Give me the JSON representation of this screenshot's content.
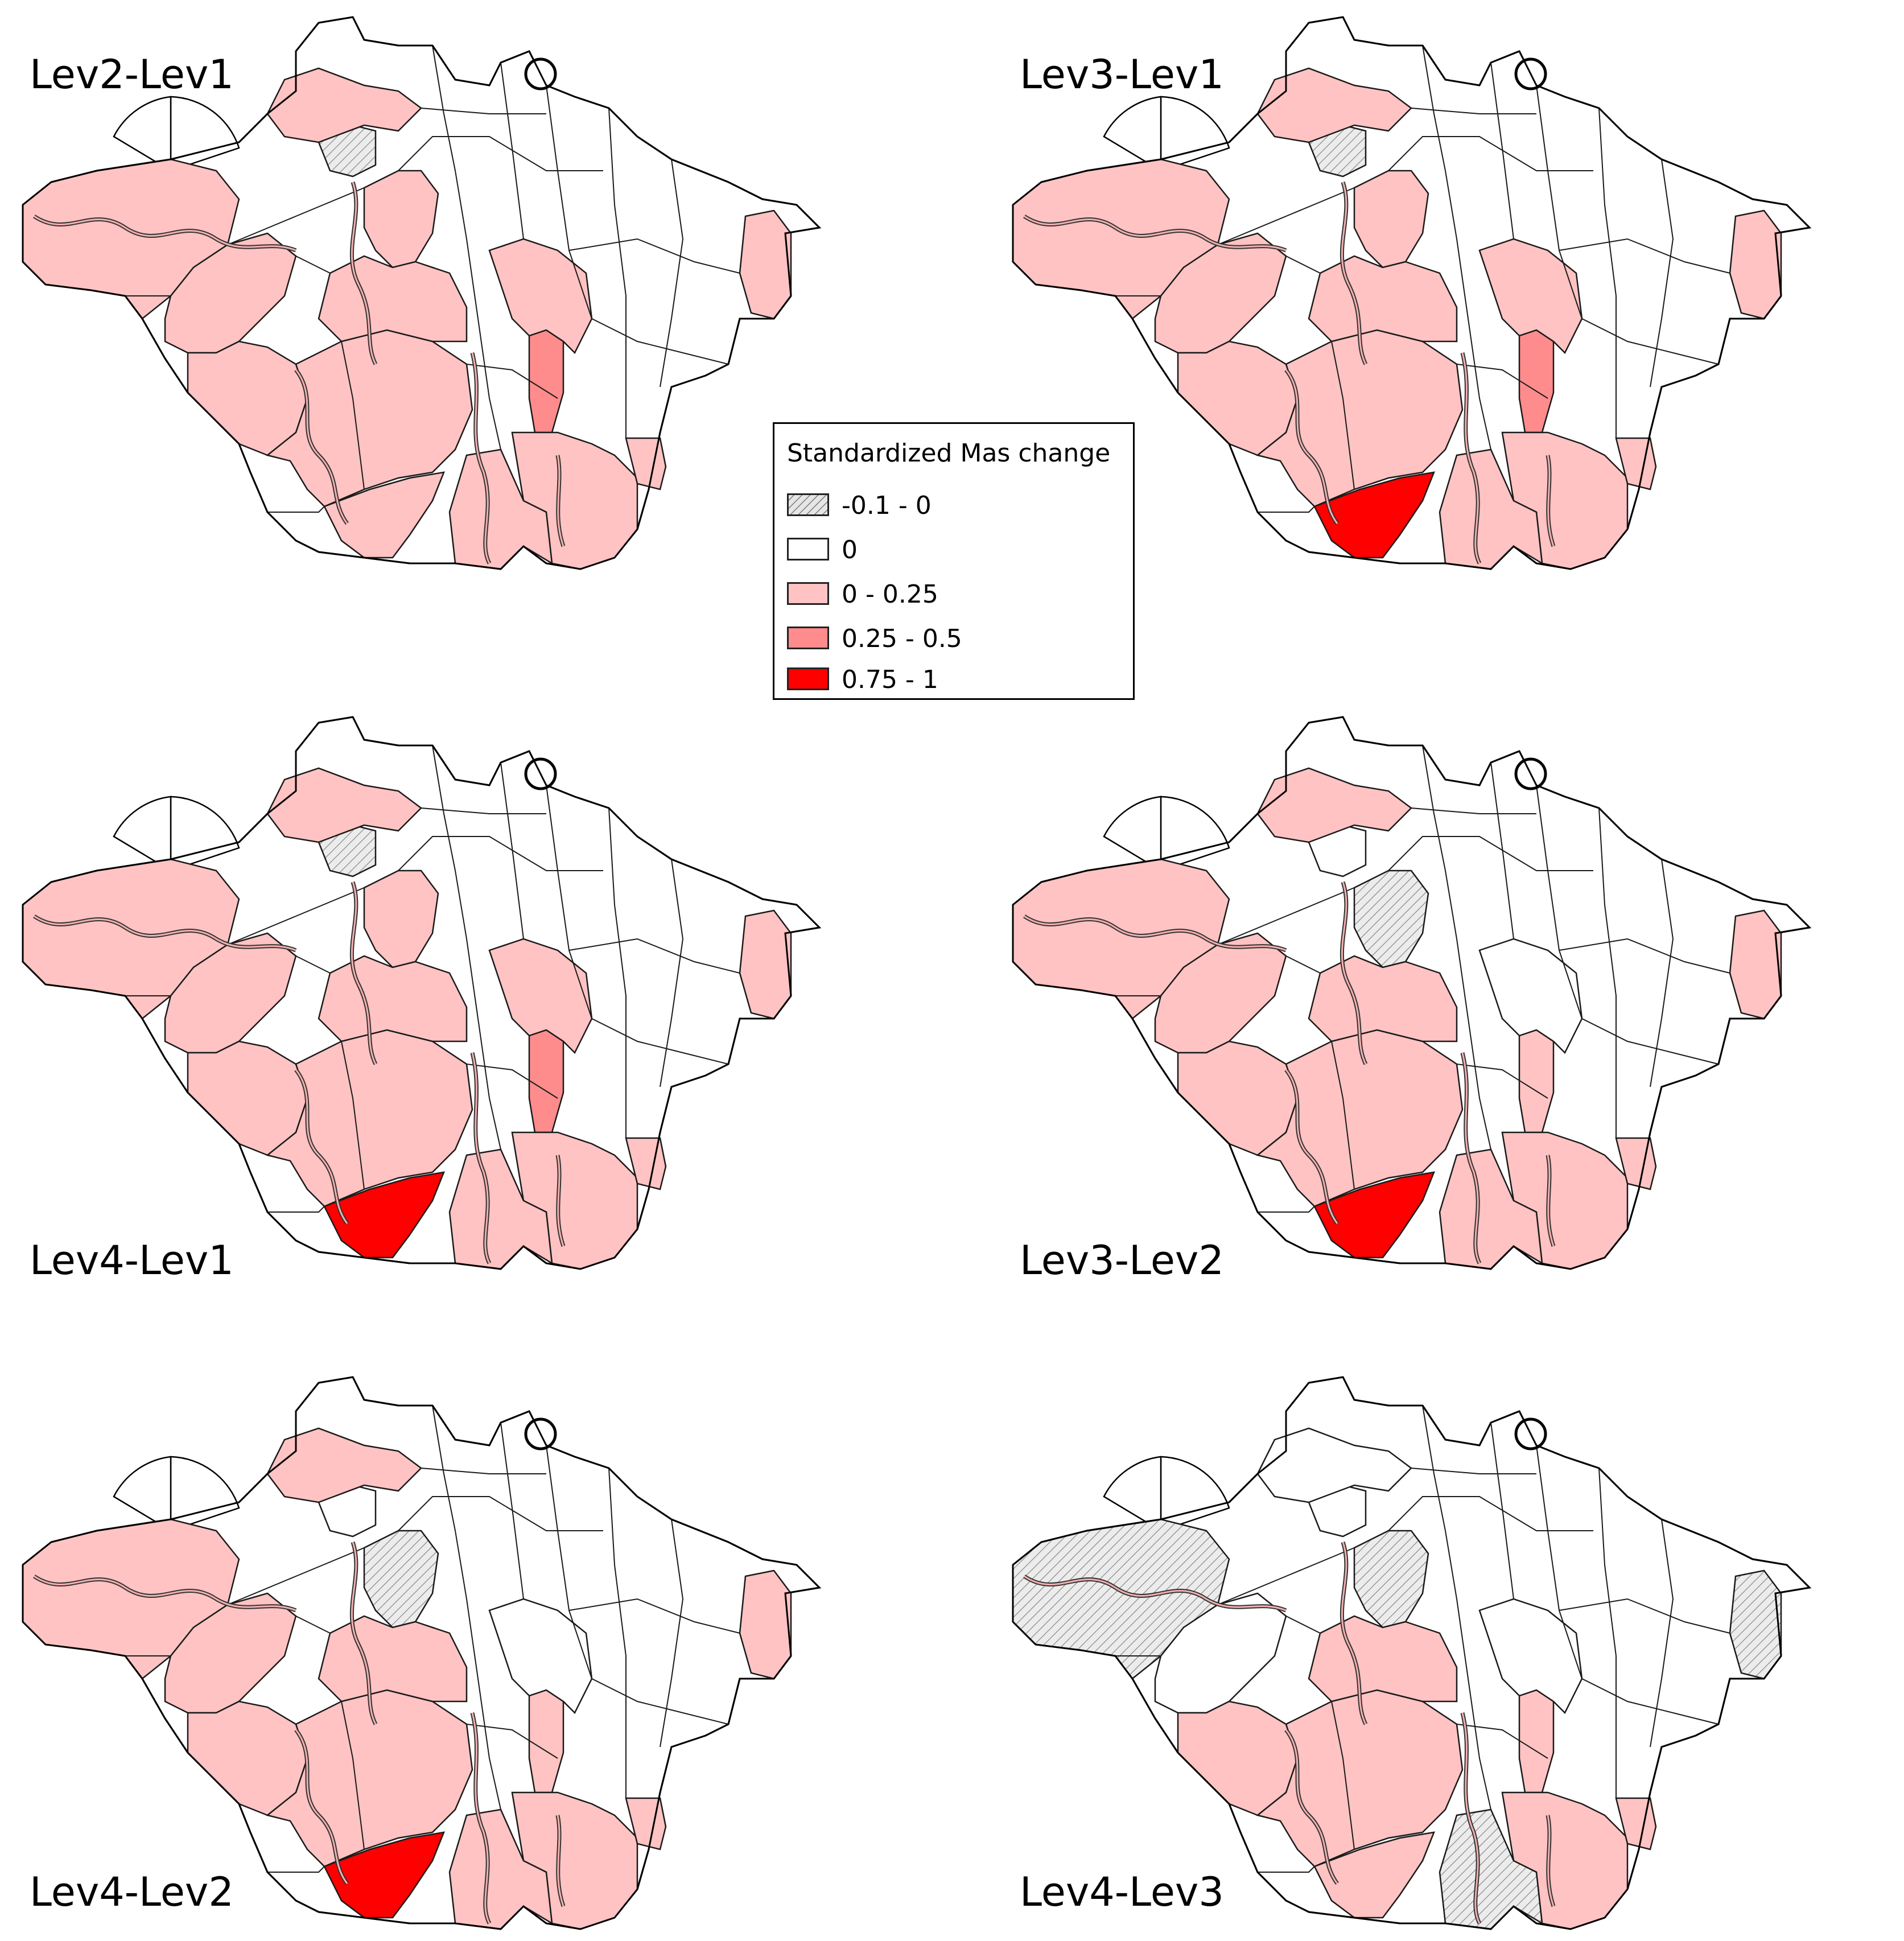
{
  "legend": {
    "title": "Standardized Mas change",
    "classes": [
      {
        "label": "-0.1 - 0",
        "fill": "hatch",
        "color": "#d9d9d9"
      },
      {
        "label": "0",
        "fill": "solid",
        "color": "#ffffff"
      },
      {
        "label": "0 - 0.25",
        "fill": "solid",
        "color": "#ffc3c3"
      },
      {
        "label": "0.25 - 0.5",
        "fill": "solid",
        "color": "#ff8c8c"
      },
      {
        "label": "0.75 - 1",
        "fill": "solid",
        "color": "#ff0000"
      }
    ]
  },
  "panels": [
    {
      "label": "Lev2-Lev1",
      "classes": {
        "p1": "low",
        "p2": "low",
        "p3": "low",
        "p4": "low",
        "p5": "low",
        "p6": "low",
        "p7": "low",
        "p8": "mid",
        "p9": "low",
        "p10": "low",
        "p11": "low",
        "p12": "low",
        "p13": "low",
        "p14": "neg",
        "p15": "low"
      }
    },
    {
      "label": "Lev3-Lev1",
      "classes": {
        "p1": "low",
        "p2": "low",
        "p3": "low",
        "p4": "low",
        "p5": "high",
        "p6": "low",
        "p7": "low",
        "p8": "mid",
        "p9": "low",
        "p10": "low",
        "p11": "low",
        "p12": "low",
        "p13": "low",
        "p14": "neg",
        "p15": "low"
      }
    },
    {
      "label": "Lev4-Lev1",
      "classes": {
        "p1": "low",
        "p2": "low",
        "p3": "low",
        "p4": "low",
        "p5": "high",
        "p6": "low",
        "p7": "low",
        "p8": "mid",
        "p9": "low",
        "p10": "low",
        "p11": "low",
        "p12": "low",
        "p13": "low",
        "p14": "neg",
        "p15": "low"
      }
    },
    {
      "label": "Lev3-Lev2",
      "classes": {
        "p1": "low",
        "p2": "low",
        "p3": "neg",
        "p4": "low",
        "p5": "high",
        "p6": "low",
        "p7": "low",
        "p8": "low",
        "p9": "low",
        "p10": "low",
        "p11": "low",
        "p12": "zero",
        "p13": "low",
        "p14": "zero",
        "p15": "low"
      }
    },
    {
      "label": "Lev4-Lev2",
      "classes": {
        "p1": "low",
        "p2": "low",
        "p3": "neg",
        "p4": "low",
        "p5": "high",
        "p6": "low",
        "p7": "low",
        "p8": "low",
        "p9": "low",
        "p10": "low",
        "p11": "low",
        "p12": "zero",
        "p13": "low",
        "p14": "zero",
        "p15": "low"
      }
    },
    {
      "label": "Lev4-Lev3",
      "classes": {
        "p1": "neg",
        "p2": "zero",
        "p3": "neg",
        "p4": "low",
        "p5": "low",
        "p6": "low",
        "p7": "low",
        "p8": "low",
        "p9": "low",
        "p10": "neg",
        "p11": "low",
        "p12": "zero",
        "p13": "neg",
        "p14": "zero",
        "p15": "zero"
      }
    }
  ]
}
